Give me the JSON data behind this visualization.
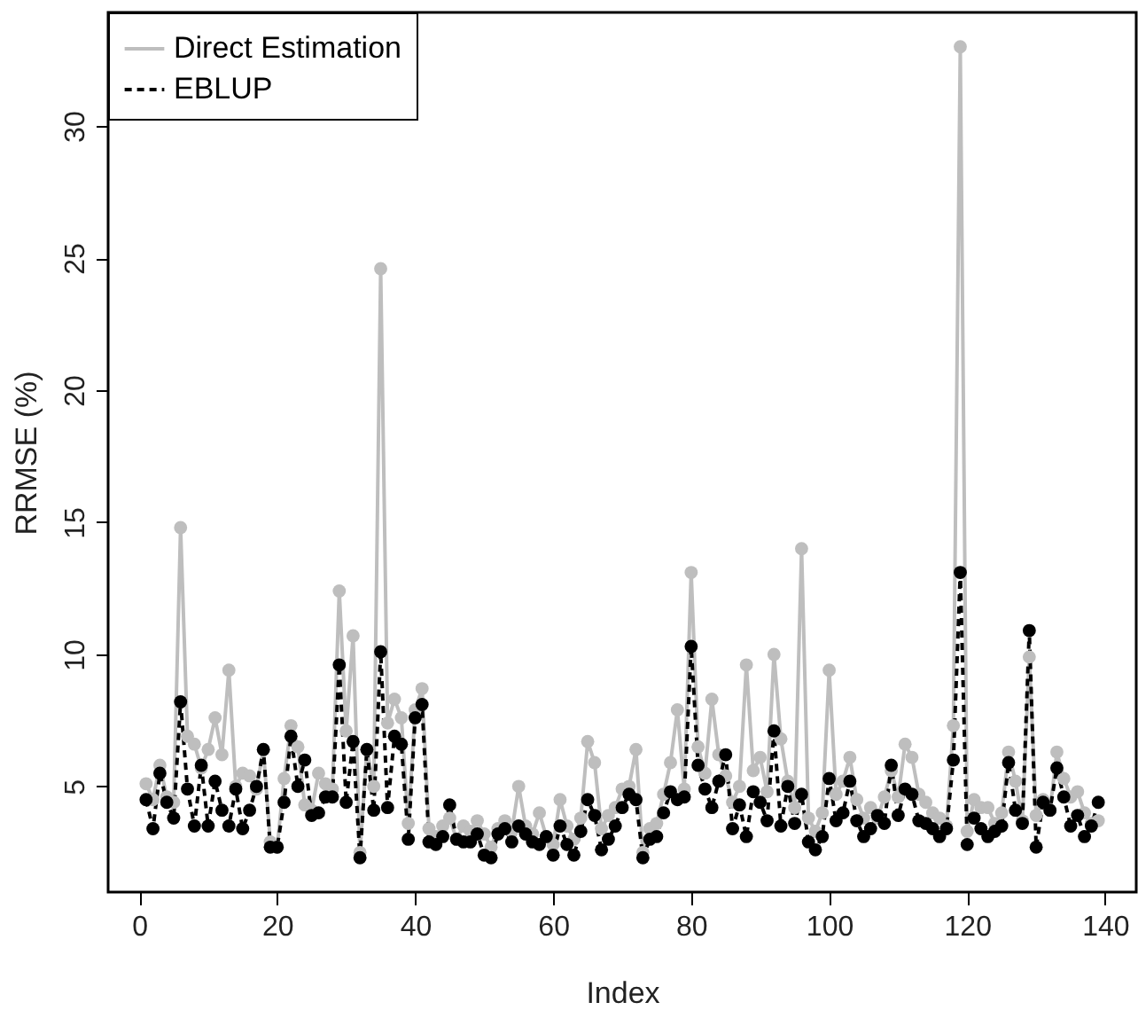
{
  "chart_data": {
    "type": "line",
    "xlabel": "Index",
    "ylabel": "RRMSE (%)",
    "x": [
      1,
      2,
      3,
      4,
      5,
      6,
      7,
      8,
      9,
      10,
      11,
      12,
      13,
      14,
      15,
      16,
      17,
      18,
      19,
      20,
      21,
      22,
      23,
      24,
      25,
      26,
      27,
      28,
      29,
      30,
      31,
      32,
      33,
      34,
      35,
      36,
      37,
      38,
      39,
      40,
      41,
      42,
      43,
      44,
      45,
      46,
      47,
      48,
      49,
      50,
      51,
      52,
      53,
      54,
      55,
      56,
      57,
      58,
      59,
      60,
      61,
      62,
      63,
      64,
      65,
      66,
      67,
      68,
      69,
      70,
      71,
      72,
      73,
      74,
      75,
      76,
      77,
      78,
      79,
      80,
      81,
      82,
      83,
      84,
      85,
      86,
      87,
      88,
      89,
      90,
      91,
      92,
      93,
      94,
      95,
      96,
      97,
      98,
      99,
      100,
      101,
      102,
      103,
      104,
      105,
      106,
      107,
      108,
      109,
      110,
      111,
      112,
      113,
      114,
      115,
      116,
      117,
      118,
      119,
      120,
      121,
      122,
      123,
      124,
      125,
      126,
      127,
      128,
      129,
      130,
      131,
      132,
      133,
      134,
      135,
      136,
      137,
      138,
      139
    ],
    "series": [
      {
        "name": "Direct Estimation",
        "color": "#bebebe",
        "line_style": "solid",
        "values": [
          5.1,
          4.5,
          5.8,
          4.6,
          4.4,
          14.8,
          6.9,
          6.6,
          5.7,
          6.4,
          7.6,
          6.2,
          9.4,
          5.0,
          5.5,
          5.4,
          4.9,
          6.4,
          2.9,
          2.7,
          5.3,
          7.3,
          6.5,
          4.3,
          4.1,
          5.5,
          5.1,
          4.9,
          12.4,
          7.1,
          10.7,
          2.5,
          6.4,
          5.0,
          24.6,
          7.4,
          8.3,
          7.6,
          3.6,
          7.9,
          8.7,
          3.4,
          3.1,
          3.5,
          3.8,
          3.0,
          3.5,
          3.3,
          3.7,
          3.2,
          2.7,
          3.4,
          3.7,
          3.3,
          5.0,
          3.5,
          3.2,
          4.0,
          3.1,
          2.8,
          4.5,
          3.5,
          3.0,
          3.8,
          6.7,
          5.9,
          3.4,
          3.9,
          4.2,
          4.9,
          5.0,
          6.4,
          2.5,
          3.4,
          3.6,
          4.7,
          5.9,
          7.9,
          4.9,
          13.1,
          6.5,
          5.5,
          8.3,
          6.2,
          5.4,
          4.4,
          5.0,
          9.6,
          5.6,
          6.1,
          4.8,
          10.0,
          6.8,
          5.2,
          4.2,
          14.0,
          3.8,
          3.3,
          4.0,
          9.4,
          4.7,
          5.2,
          6.1,
          4.5,
          3.8,
          4.2,
          3.8,
          4.6,
          5.6,
          4.6,
          6.6,
          6.1,
          4.7,
          4.4,
          4.0,
          3.8,
          3.5,
          7.3,
          33.0,
          3.3,
          4.5,
          4.2,
          4.2,
          3.6,
          4.0,
          6.3,
          5.2,
          3.7,
          9.9,
          3.9,
          4.5,
          4.1,
          6.3,
          5.3,
          4.6,
          4.8,
          4.0,
          3.6,
          3.7
        ]
      },
      {
        "name": "EBLUP",
        "color": "#000000",
        "line_style": "dashed",
        "values": [
          4.5,
          3.4,
          5.5,
          4.4,
          3.8,
          8.2,
          4.9,
          3.5,
          5.8,
          3.5,
          5.2,
          4.1,
          3.5,
          4.9,
          3.4,
          4.1,
          5.0,
          6.4,
          2.7,
          2.7,
          4.4,
          6.9,
          5.0,
          6.0,
          3.9,
          4.0,
          4.6,
          4.6,
          9.6,
          4.4,
          6.7,
          2.3,
          6.4,
          4.1,
          10.1,
          4.2,
          6.9,
          6.6,
          3.0,
          7.6,
          8.1,
          2.9,
          2.8,
          3.1,
          4.3,
          3.0,
          2.9,
          2.9,
          3.2,
          2.4,
          2.3,
          3.2,
          3.4,
          2.9,
          3.5,
          3.2,
          2.9,
          2.8,
          3.1,
          2.4,
          3.5,
          2.8,
          2.4,
          3.3,
          4.5,
          3.9,
          2.6,
          3.0,
          3.5,
          4.2,
          4.7,
          4.5,
          2.3,
          3.0,
          3.1,
          4.0,
          4.8,
          4.5,
          4.6,
          10.3,
          5.8,
          4.9,
          4.2,
          5.2,
          6.2,
          3.4,
          4.3,
          3.1,
          4.8,
          4.4,
          3.7,
          7.1,
          3.5,
          5.0,
          3.6,
          4.7,
          2.9,
          2.6,
          3.1,
          5.3,
          3.7,
          4.0,
          5.2,
          3.7,
          3.1,
          3.4,
          3.9,
          3.6,
          5.8,
          3.9,
          4.9,
          4.7,
          3.7,
          3.6,
          3.4,
          3.1,
          3.4,
          6.0,
          13.1,
          2.8,
          3.8,
          3.4,
          3.1,
          3.3,
          3.5,
          5.9,
          4.1,
          3.6,
          10.9,
          2.7,
          4.4,
          4.1,
          5.7,
          4.6,
          3.5,
          3.9,
          3.1,
          3.5,
          4.4
        ]
      }
    ],
    "xlim": [
      -4.5,
      144.5
    ],
    "ylim": [
      1.0,
      34.3
    ],
    "xticks": [
      0,
      20,
      40,
      60,
      80,
      100,
      120,
      140
    ],
    "yticks": [
      5,
      10,
      15,
      20,
      25,
      30
    ],
    "legend": "top left",
    "marker": "circle"
  }
}
